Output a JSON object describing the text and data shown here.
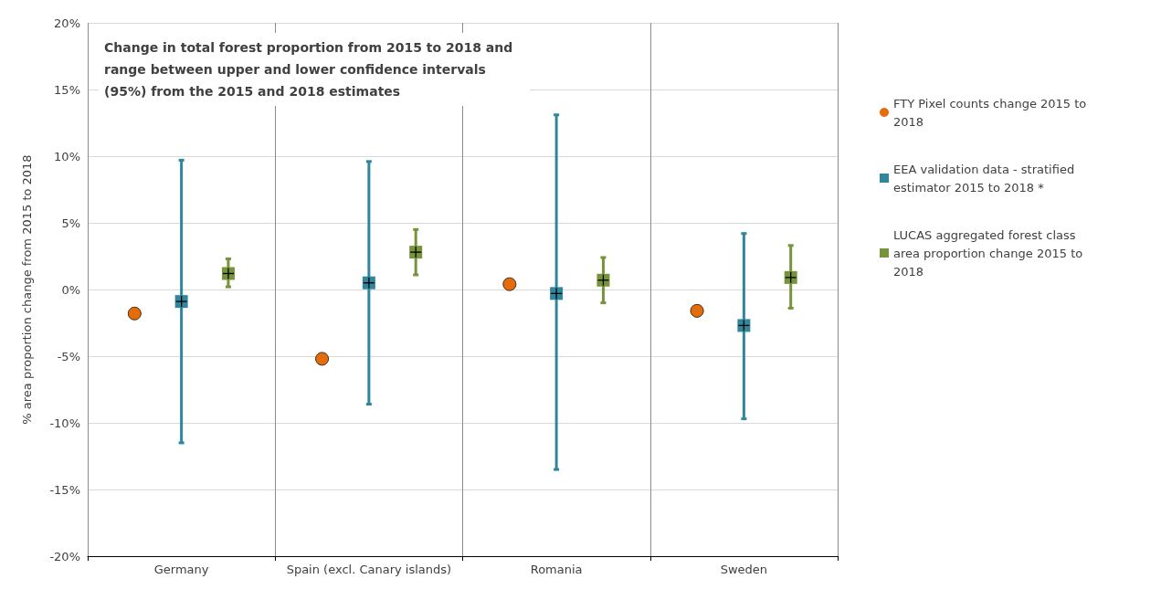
{
  "chart_data": {
    "type": "scatter",
    "title": "Change in total forest proportion from 2015 to 2018 and range between upper and lower confidence intervals (95%) from the 2015 and 2018 estimates",
    "ylabel": "% area proportion change from 2015 to 2018",
    "categories": [
      "Germany",
      "Spain (excl. Canary islands)",
      "Romania",
      "Sweden"
    ],
    "series": [
      {
        "name": "FTY Pixel counts change 2015 to 2018",
        "color": "#e46c0a",
        "marker": "circle",
        "values": [
          -1.8,
          -5.2,
          0.4,
          -1.6
        ]
      },
      {
        "name": "EEA validation data - stratified estimator 2015 to 2018 *",
        "color": "#31859c",
        "marker": "square",
        "values": [
          -0.9,
          0.5,
          -0.3,
          -2.7
        ],
        "errors": [
          [
            -11.5,
            9.7
          ],
          [
            -8.6,
            9.6
          ],
          [
            -13.5,
            13.1
          ],
          [
            -9.7,
            4.2
          ]
        ]
      },
      {
        "name": "LUCAS aggregated forest class area proportion change 2015 to 2018",
        "color": "#77933c",
        "marker": "square",
        "values": [
          1.2,
          2.8,
          0.7,
          0.9
        ],
        "errors": [
          [
            0.2,
            2.3
          ],
          [
            1.1,
            4.5
          ],
          [
            -1.0,
            2.4
          ],
          [
            -1.4,
            3.3
          ]
        ]
      }
    ],
    "ylim": [
      -20,
      20
    ],
    "yticks": [
      {
        "value": -20,
        "label": "-20%"
      },
      {
        "value": -15,
        "label": "-15%"
      },
      {
        "value": -10,
        "label": "-10%"
      },
      {
        "value": -5,
        "label": "-5%"
      },
      {
        "value": 0,
        "label": "0%"
      },
      {
        "value": 5,
        "label": "5%"
      },
      {
        "value": 10,
        "label": "10%"
      },
      {
        "value": 15,
        "label": "15%"
      },
      {
        "value": 20,
        "label": "20%"
      }
    ],
    "grid": true,
    "legend": "right"
  }
}
